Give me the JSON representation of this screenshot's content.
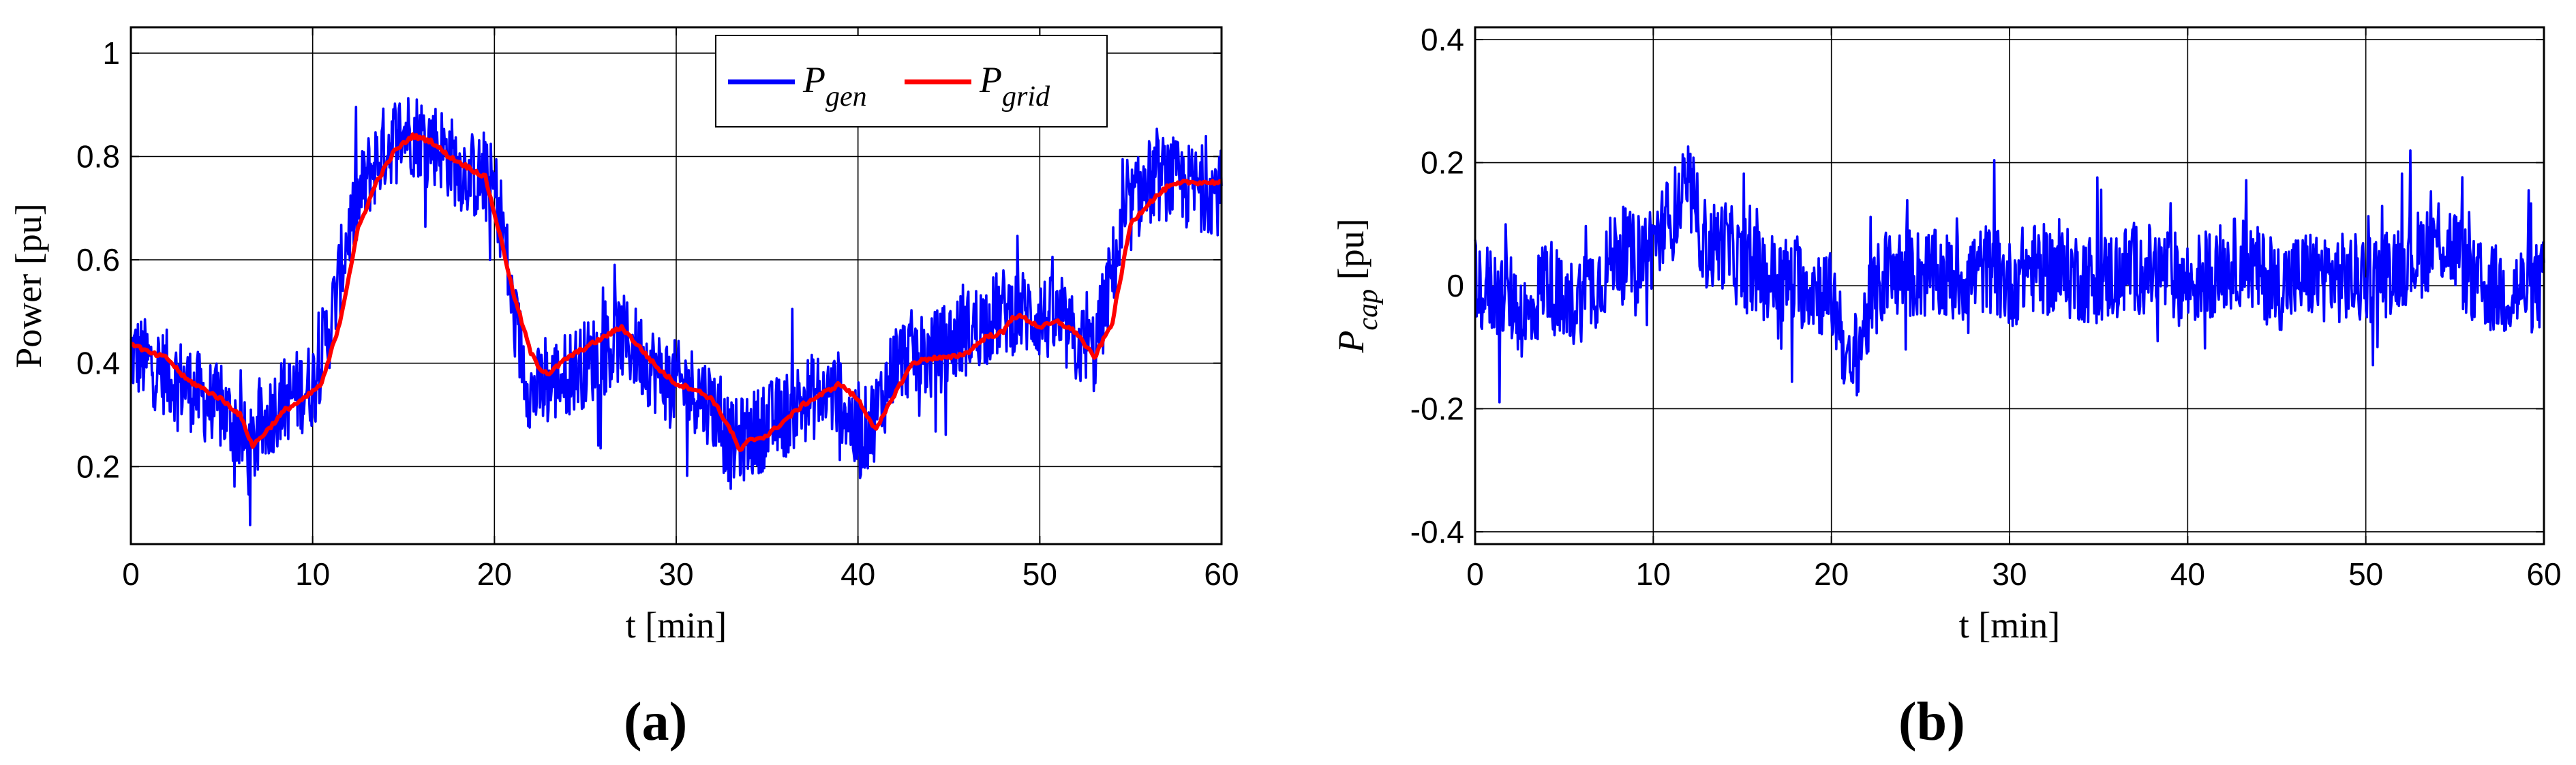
{
  "chart_data": [
    {
      "type": "line",
      "panel_label": "(a)",
      "xlabel": "t [min]",
      "ylabel": "Power [pu]",
      "xlim": [
        0,
        60
      ],
      "ylim": [
        0.05,
        1.05
      ],
      "xticks": [
        0,
        10,
        20,
        30,
        40,
        50,
        60
      ],
      "yticks": [
        0.2,
        0.4,
        0.6,
        0.8,
        1
      ],
      "ytick_labels": [
        "0.2",
        "0.4",
        "0.6",
        "0.8",
        "1"
      ],
      "grid": true,
      "legend_position": "top-right",
      "colors": {
        "gen": "#0000ff",
        "grid": "#ff0000"
      },
      "series": [
        {
          "name": "P_gen",
          "legend_main": "P",
          "legend_sub": "gen",
          "color": "#0000ff",
          "noisy": true,
          "x": [
            0,
            2,
            3,
            4,
            5,
            6,
            6.5,
            7,
            8,
            9,
            10,
            11,
            12,
            13,
            14,
            15,
            16,
            17,
            18,
            19,
            20,
            20.5,
            21,
            22,
            23,
            24,
            25,
            26,
            27,
            28,
            29,
            30,
            31,
            32,
            33,
            34,
            35,
            36,
            37,
            38,
            39,
            40,
            41,
            42,
            43,
            44,
            45,
            46,
            47,
            48,
            49,
            50,
            51,
            52,
            53,
            54,
            55,
            56,
            57,
            58,
            59,
            60
          ],
          "y": [
            0.42,
            0.38,
            0.36,
            0.33,
            0.31,
            0.27,
            0.22,
            0.26,
            0.32,
            0.34,
            0.36,
            0.48,
            0.66,
            0.76,
            0.82,
            0.85,
            0.84,
            0.82,
            0.78,
            0.76,
            0.74,
            0.66,
            0.5,
            0.34,
            0.36,
            0.38,
            0.4,
            0.42,
            0.45,
            0.42,
            0.38,
            0.36,
            0.35,
            0.32,
            0.24,
            0.26,
            0.28,
            0.3,
            0.33,
            0.34,
            0.34,
            0.25,
            0.3,
            0.4,
            0.42,
            0.41,
            0.44,
            0.46,
            0.48,
            0.5,
            0.5,
            0.49,
            0.48,
            0.44,
            0.42,
            0.58,
            0.7,
            0.75,
            0.76,
            0.74,
            0.74,
            0.73
          ]
        },
        {
          "name": "P_grid",
          "legend_main": "P",
          "legend_sub": "grid",
          "color": "#ff0000",
          "noisy": false,
          "x": [
            0,
            1,
            2,
            3,
            4,
            5,
            6,
            6.7,
            7.5,
            8.5,
            9.5,
            10.5,
            11.5,
            12.5,
            13.5,
            14.5,
            15.5,
            16.5,
            17.5,
            18.5,
            19.5,
            20.5,
            21,
            21.5,
            22,
            22.5,
            23,
            24,
            25,
            26,
            27,
            28,
            29,
            30,
            31,
            32,
            33,
            33.5,
            34,
            35,
            36,
            37,
            38,
            39,
            40,
            41,
            42,
            43,
            44,
            45,
            46,
            47,
            48,
            48.5,
            49,
            50,
            51,
            52,
            53,
            54,
            55,
            56,
            57,
            58,
            59,
            60
          ],
          "y": [
            0.44,
            0.42,
            0.41,
            0.37,
            0.35,
            0.33,
            0.3,
            0.24,
            0.27,
            0.31,
            0.33,
            0.36,
            0.48,
            0.66,
            0.75,
            0.81,
            0.84,
            0.83,
            0.8,
            0.78,
            0.76,
            0.62,
            0.54,
            0.48,
            0.42,
            0.39,
            0.38,
            0.41,
            0.43,
            0.45,
            0.47,
            0.43,
            0.39,
            0.36,
            0.35,
            0.33,
            0.27,
            0.23,
            0.25,
            0.26,
            0.29,
            0.32,
            0.34,
            0.36,
            0.33,
            0.27,
            0.34,
            0.4,
            0.41,
            0.41,
            0.42,
            0.45,
            0.46,
            0.49,
            0.49,
            0.47,
            0.48,
            0.46,
            0.41,
            0.48,
            0.67,
            0.71,
            0.74,
            0.75,
            0.75,
            0.75
          ]
        }
      ]
    },
    {
      "type": "line",
      "panel_label": "(b)",
      "xlabel": "t [min]",
      "ylabel_main": "P",
      "ylabel_sub": "cap",
      "ylabel_unit": " [pu]",
      "xlim": [
        0,
        60
      ],
      "ylim": [
        -0.42,
        0.42
      ],
      "xticks": [
        0,
        10,
        20,
        30,
        40,
        50,
        60
      ],
      "yticks": [
        -0.4,
        -0.2,
        0,
        0.2,
        0.4
      ],
      "ytick_labels": [
        "-0.4",
        "-0.2",
        "0",
        "0.2",
        "0.4"
      ],
      "grid": true,
      "series": [
        {
          "name": "P_cap",
          "color": "#0000ff",
          "noisy": true,
          "x": [
            0,
            2,
            3,
            4,
            5,
            7,
            8,
            9,
            10,
            11,
            12,
            13,
            14,
            15,
            17,
            19,
            20,
            20.5,
            21,
            22,
            23,
            25,
            27,
            29,
            30,
            31,
            33,
            35,
            37,
            39,
            40,
            41,
            43,
            45,
            47,
            49,
            50,
            51,
            52,
            53,
            54,
            55,
            56,
            58,
            60
          ],
          "y": [
            0.0,
            -0.02,
            -0.06,
            0.02,
            -0.04,
            0.01,
            0.06,
            0.04,
            0.07,
            0.11,
            0.16,
            0.06,
            0.07,
            0.03,
            0.01,
            0.0,
            -0.02,
            -0.06,
            -0.15,
            -0.05,
            0.02,
            0.02,
            0.01,
            0.03,
            0.0,
            0.03,
            0.02,
            0.01,
            0.03,
            0.02,
            0.0,
            0.02,
            0.04,
            0.0,
            0.02,
            0.01,
            0.01,
            0.02,
            0.04,
            0.05,
            0.08,
            0.06,
            0.0,
            -0.01,
            0.0
          ]
        }
      ]
    }
  ]
}
